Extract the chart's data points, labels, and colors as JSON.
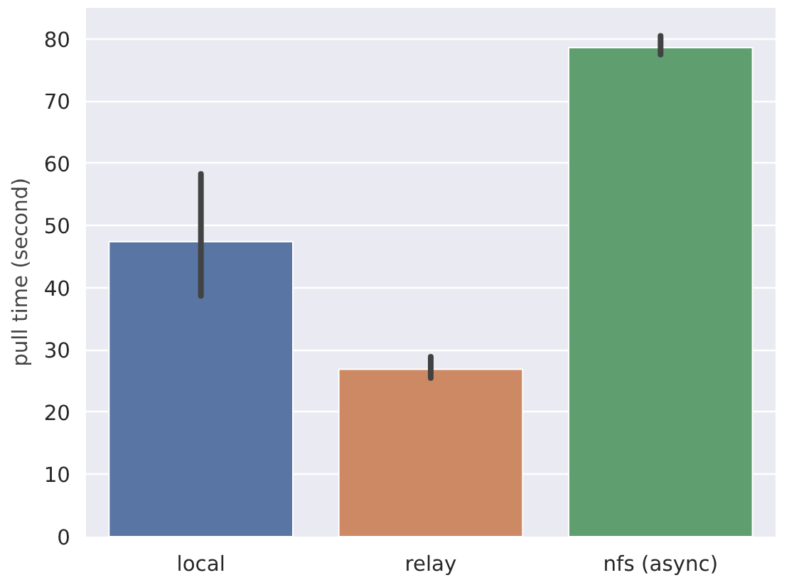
{
  "chart_data": {
    "type": "bar",
    "ylabel": "pull time (second)",
    "categories": [
      "local",
      "relay",
      "nfs (async)"
    ],
    "values": [
      47.4,
      26.9,
      78.6
    ],
    "colors": [
      "#5975a4",
      "#cc8963",
      "#5f9e6e"
    ],
    "errors": [
      [
        38.7,
        58.3
      ],
      [
        25.5,
        28.9
      ],
      [
        77.5,
        80.5
      ]
    ],
    "ylim": [
      0,
      85
    ],
    "yticks": [
      0,
      10,
      20,
      30,
      40,
      50,
      60,
      70,
      80
    ],
    "grid": "y"
  }
}
